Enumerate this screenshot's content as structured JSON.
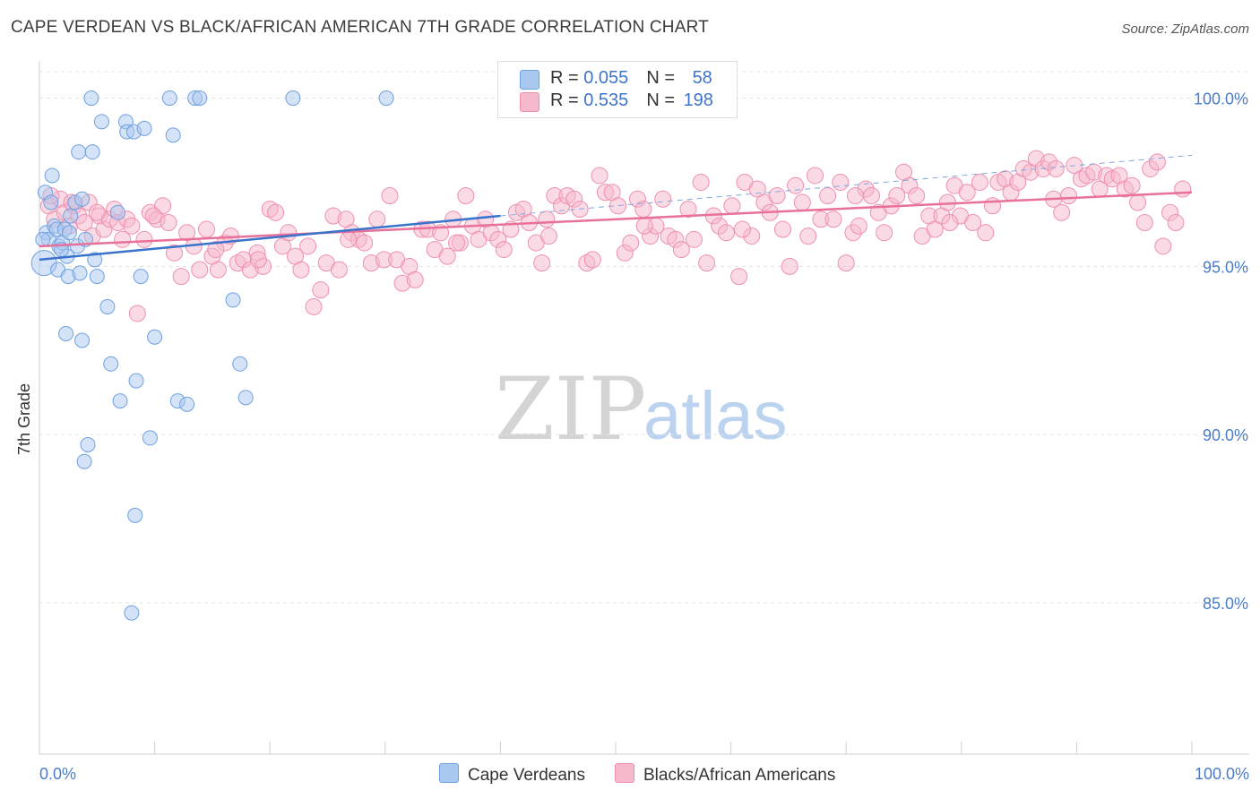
{
  "header": {
    "title": "CAPE VERDEAN VS BLACK/AFRICAN AMERICAN 7TH GRADE CORRELATION CHART",
    "source": "Source: ZipAtlas.com"
  },
  "legend": {
    "rows": [
      {
        "r_label": "R = ",
        "r_value": "0.055",
        "n_label": "N = ",
        "n_value": "58",
        "color": "#a9c8f0"
      },
      {
        "r_label": "R = ",
        "r_value": "0.535",
        "n_label": "N = ",
        "n_value": "198",
        "color": "#f6b8cb"
      }
    ]
  },
  "bottom_legend": {
    "series1": "Cape Verdeans",
    "series2": "Blacks/African Americans"
  },
  "watermark": {
    "part1": "ZIP",
    "part2": "atlas"
  },
  "chart_data": {
    "type": "scatter",
    "title": "CAPE VERDEAN VS BLACK/AFRICAN AMERICAN 7TH GRADE CORRELATION CHART",
    "xlabel": "",
    "ylabel": "7th Grade",
    "xlim": [
      0,
      100
    ],
    "ylim": [
      80.5,
      101
    ],
    "x_tick_labels": [
      "0.0%",
      "100.0%"
    ],
    "y_ticks": [
      {
        "value": 100,
        "label": "100.0%"
      },
      {
        "value": 95,
        "label": "95.0%"
      },
      {
        "value": 90,
        "label": "90.0%"
      },
      {
        "value": 85,
        "label": "85.0%"
      }
    ],
    "grid": true,
    "legend_position": "top-center",
    "series": [
      {
        "name": "Cape Verdeans",
        "color": "#6fa1e0",
        "fill": "#a9c8f0",
        "r": 0.055,
        "n": 58,
        "trend": {
          "x": [
            0,
            40
          ],
          "y": [
            95.2,
            96.5
          ]
        },
        "trend_extension": {
          "x": [
            40,
            100
          ],
          "y": [
            96.5,
            98.3
          ]
        },
        "points": [
          [
            0.5,
            97.2
          ],
          [
            0.6,
            96.0
          ],
          [
            0.8,
            95.8
          ],
          [
            0.4,
            95.1
          ],
          [
            1.1,
            97.7
          ],
          [
            1.3,
            96.2
          ],
          [
            1.5,
            96.1
          ],
          [
            1.7,
            95.6
          ],
          [
            1.6,
            94.9
          ],
          [
            2.2,
            96.1
          ],
          [
            2.0,
            95.7
          ],
          [
            2.4,
            95.3
          ],
          [
            2.5,
            94.7
          ],
          [
            2.6,
            96.0
          ],
          [
            2.7,
            96.5
          ],
          [
            3.1,
            96.9
          ],
          [
            3.3,
            95.6
          ],
          [
            3.4,
            98.4
          ],
          [
            3.5,
            94.8
          ],
          [
            3.7,
            97.0
          ],
          [
            4.0,
            95.8
          ],
          [
            4.5,
            100.0
          ],
          [
            4.6,
            98.4
          ],
          [
            4.8,
            95.2
          ],
          [
            5.0,
            94.7
          ],
          [
            5.4,
            99.3
          ],
          [
            5.9,
            93.8
          ],
          [
            6.2,
            92.1
          ],
          [
            6.8,
            96.6
          ],
          [
            7.0,
            91.0
          ],
          [
            7.5,
            99.3
          ],
          [
            7.6,
            99.0
          ],
          [
            8.2,
            99.0
          ],
          [
            8.4,
            91.6
          ],
          [
            8.8,
            94.7
          ],
          [
            9.1,
            99.1
          ],
          [
            9.6,
            89.9
          ],
          [
            10.0,
            92.9
          ],
          [
            11.3,
            100.0
          ],
          [
            11.6,
            98.9
          ],
          [
            12.0,
            91.0
          ],
          [
            12.8,
            90.9
          ],
          [
            13.5,
            100.0
          ],
          [
            13.9,
            100.0
          ],
          [
            16.8,
            94.0
          ],
          [
            17.4,
            92.1
          ],
          [
            17.9,
            91.1
          ],
          [
            22.0,
            100.0
          ],
          [
            30.1,
            100.0
          ],
          [
            4.2,
            89.7
          ],
          [
            3.9,
            89.2
          ],
          [
            8.3,
            87.6
          ],
          [
            8.0,
            84.7
          ],
          [
            2.3,
            93.0
          ],
          [
            3.7,
            92.8
          ],
          [
            1.0,
            96.9
          ],
          [
            0.3,
            95.8
          ],
          [
            1.9,
            95.5
          ]
        ]
      },
      {
        "name": "Blacks/African Americans",
        "color": "#ef8fae",
        "fill": "#f6b8cb",
        "r": 0.535,
        "n": 198,
        "trend": {
          "x": [
            0,
            100
          ],
          "y": [
            95.6,
            97.2
          ]
        },
        "points": [
          [
            0.8,
            96.8
          ],
          [
            1.3,
            96.4
          ],
          [
            1.8,
            97.0
          ],
          [
            2.2,
            96.6
          ],
          [
            2.6,
            96.2
          ],
          [
            3.0,
            96.8
          ],
          [
            3.4,
            96.5
          ],
          [
            3.9,
            96.3
          ],
          [
            4.3,
            96.9
          ],
          [
            4.6,
            95.9
          ],
          [
            5.2,
            96.5
          ],
          [
            5.6,
            96.1
          ],
          [
            6.1,
            96.4
          ],
          [
            6.5,
            96.7
          ],
          [
            6.8,
            96.3
          ],
          [
            7.2,
            95.8
          ],
          [
            7.6,
            96.4
          ],
          [
            8.0,
            96.2
          ],
          [
            8.5,
            93.6
          ],
          [
            9.1,
            95.8
          ],
          [
            9.6,
            96.6
          ],
          [
            10.2,
            96.4
          ],
          [
            10.7,
            96.8
          ],
          [
            11.2,
            96.3
          ],
          [
            11.7,
            95.4
          ],
          [
            12.3,
            94.7
          ],
          [
            12.8,
            96.0
          ],
          [
            13.4,
            95.6
          ],
          [
            13.9,
            94.9
          ],
          [
            14.5,
            96.1
          ],
          [
            15.0,
            95.3
          ],
          [
            15.5,
            94.9
          ],
          [
            16.1,
            95.7
          ],
          [
            16.6,
            95.9
          ],
          [
            17.2,
            95.1
          ],
          [
            17.7,
            95.2
          ],
          [
            18.3,
            94.9
          ],
          [
            18.9,
            95.4
          ],
          [
            19.4,
            95.0
          ],
          [
            20.0,
            96.7
          ],
          [
            20.5,
            96.6
          ],
          [
            21.1,
            95.6
          ],
          [
            21.6,
            96.0
          ],
          [
            22.2,
            95.3
          ],
          [
            22.7,
            94.9
          ],
          [
            23.3,
            95.6
          ],
          [
            23.8,
            93.8
          ],
          [
            24.4,
            94.3
          ],
          [
            24.9,
            95.1
          ],
          [
            25.5,
            96.5
          ],
          [
            26.0,
            94.9
          ],
          [
            26.6,
            96.4
          ],
          [
            27.1,
            96.0
          ],
          [
            27.7,
            95.8
          ],
          [
            28.2,
            95.7
          ],
          [
            28.8,
            95.1
          ],
          [
            29.3,
            96.4
          ],
          [
            29.9,
            95.2
          ],
          [
            30.4,
            97.1
          ],
          [
            31.0,
            95.2
          ],
          [
            31.5,
            94.5
          ],
          [
            32.1,
            95.0
          ],
          [
            32.6,
            94.6
          ],
          [
            33.2,
            96.1
          ],
          [
            33.7,
            96.1
          ],
          [
            34.3,
            95.5
          ],
          [
            34.8,
            96.0
          ],
          [
            35.4,
            95.3
          ],
          [
            35.9,
            96.4
          ],
          [
            36.5,
            95.7
          ],
          [
            37.0,
            97.1
          ],
          [
            37.6,
            96.2
          ],
          [
            38.1,
            95.8
          ],
          [
            38.7,
            96.4
          ],
          [
            39.2,
            96.0
          ],
          [
            39.8,
            95.8
          ],
          [
            40.3,
            95.5
          ],
          [
            40.9,
            96.1
          ],
          [
            41.4,
            96.6
          ],
          [
            42.0,
            96.7
          ],
          [
            42.5,
            96.3
          ],
          [
            43.1,
            95.7
          ],
          [
            43.6,
            95.1
          ],
          [
            44.2,
            95.9
          ],
          [
            44.7,
            97.1
          ],
          [
            45.3,
            96.8
          ],
          [
            45.8,
            97.1
          ],
          [
            46.4,
            97.0
          ],
          [
            46.9,
            96.7
          ],
          [
            47.5,
            95.1
          ],
          [
            48.0,
            95.2
          ],
          [
            48.6,
            97.7
          ],
          [
            49.1,
            97.2
          ],
          [
            49.7,
            97.2
          ],
          [
            50.2,
            96.8
          ],
          [
            50.8,
            95.4
          ],
          [
            51.3,
            95.7
          ],
          [
            51.9,
            97.0
          ],
          [
            52.4,
            96.7
          ],
          [
            53.0,
            95.9
          ],
          [
            53.5,
            96.2
          ],
          [
            54.1,
            97.0
          ],
          [
            54.6,
            95.9
          ],
          [
            55.2,
            95.8
          ],
          [
            55.7,
            95.5
          ],
          [
            56.3,
            96.7
          ],
          [
            56.8,
            95.8
          ],
          [
            57.4,
            97.5
          ],
          [
            57.9,
            95.1
          ],
          [
            58.5,
            96.5
          ],
          [
            59.0,
            96.2
          ],
          [
            59.6,
            96.0
          ],
          [
            60.1,
            96.8
          ],
          [
            60.7,
            94.7
          ],
          [
            61.2,
            97.5
          ],
          [
            61.8,
            95.9
          ],
          [
            62.3,
            97.3
          ],
          [
            62.9,
            96.9
          ],
          [
            63.4,
            96.6
          ],
          [
            64.0,
            97.1
          ],
          [
            64.5,
            96.1
          ],
          [
            65.1,
            95.0
          ],
          [
            65.6,
            97.4
          ],
          [
            66.2,
            96.9
          ],
          [
            66.7,
            95.9
          ],
          [
            67.3,
            97.7
          ],
          [
            67.8,
            96.4
          ],
          [
            68.4,
            97.1
          ],
          [
            68.9,
            96.4
          ],
          [
            69.5,
            97.5
          ],
          [
            70.0,
            95.1
          ],
          [
            70.6,
            96.0
          ],
          [
            71.1,
            96.2
          ],
          [
            71.7,
            97.3
          ],
          [
            72.2,
            97.1
          ],
          [
            72.8,
            96.6
          ],
          [
            73.3,
            96.0
          ],
          [
            73.9,
            96.8
          ],
          [
            74.4,
            97.1
          ],
          [
            75.0,
            97.8
          ],
          [
            75.5,
            97.4
          ],
          [
            76.1,
            97.1
          ],
          [
            76.6,
            95.9
          ],
          [
            77.2,
            96.5
          ],
          [
            77.7,
            96.1
          ],
          [
            78.3,
            96.5
          ],
          [
            78.8,
            96.9
          ],
          [
            79.4,
            97.4
          ],
          [
            79.9,
            96.5
          ],
          [
            80.5,
            97.2
          ],
          [
            81.0,
            96.3
          ],
          [
            81.6,
            97.5
          ],
          [
            82.1,
            96.0
          ],
          [
            82.7,
            96.8
          ],
          [
            83.2,
            97.5
          ],
          [
            83.8,
            97.6
          ],
          [
            84.3,
            97.2
          ],
          [
            84.9,
            97.5
          ],
          [
            85.4,
            97.9
          ],
          [
            86.0,
            97.8
          ],
          [
            86.5,
            98.2
          ],
          [
            87.1,
            97.9
          ],
          [
            87.6,
            98.1
          ],
          [
            88.2,
            97.9
          ],
          [
            88.7,
            96.6
          ],
          [
            89.3,
            97.1
          ],
          [
            89.8,
            98.0
          ],
          [
            90.4,
            97.6
          ],
          [
            90.9,
            97.7
          ],
          [
            91.5,
            97.8
          ],
          [
            92.0,
            97.3
          ],
          [
            92.6,
            97.7
          ],
          [
            93.1,
            97.6
          ],
          [
            93.7,
            97.7
          ],
          [
            94.2,
            97.3
          ],
          [
            94.8,
            97.4
          ],
          [
            95.3,
            96.9
          ],
          [
            95.9,
            96.3
          ],
          [
            96.4,
            97.9
          ],
          [
            97.0,
            98.1
          ],
          [
            97.5,
            95.6
          ],
          [
            98.1,
            96.6
          ],
          [
            98.6,
            96.3
          ],
          [
            99.2,
            97.3
          ],
          [
            1.0,
            97.1
          ],
          [
            2.8,
            96.9
          ],
          [
            5.0,
            96.6
          ],
          [
            9.9,
            96.5
          ],
          [
            15.3,
            95.5
          ],
          [
            19.0,
            95.2
          ],
          [
            26.8,
            95.8
          ],
          [
            36.2,
            95.7
          ],
          [
            44.0,
            96.4
          ],
          [
            52.5,
            96.2
          ],
          [
            61.0,
            96.1
          ],
          [
            70.8,
            97.1
          ],
          [
            79.0,
            96.3
          ],
          [
            88.0,
            97.0
          ]
        ]
      }
    ]
  }
}
